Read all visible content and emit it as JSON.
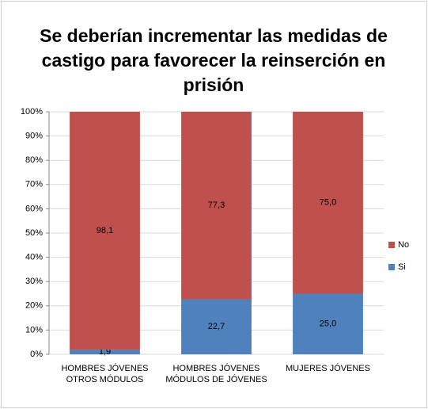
{
  "chart_data": {
    "type": "stacked_bar",
    "title": "Se deberían incrementar las medidas de castigo para favorecer la reinserción en prisión",
    "categories": [
      "HOMBRES JÓVENES OTROS MÓDULOS",
      "HOMBRES JÓVENES MÓDULOS DE JÓVENES",
      "MUJERES JÓVENES"
    ],
    "series": [
      {
        "name": "Si",
        "color": "#4f81bd",
        "values": [
          1.9,
          22.7,
          25.0
        ],
        "value_labels": [
          "1,9",
          "22,7",
          "25,0"
        ]
      },
      {
        "name": "No",
        "color": "#c0504d",
        "values": [
          98.1,
          77.3,
          75.0
        ],
        "value_labels": [
          "98,1",
          "77,3",
          "75,0"
        ]
      }
    ],
    "ylim": [
      0,
      100
    ],
    "yticks": [
      {
        "value": 0,
        "label": "0%"
      },
      {
        "value": 10,
        "label": "10%"
      },
      {
        "value": 20,
        "label": "20%"
      },
      {
        "value": 30,
        "label": "30%"
      },
      {
        "value": 40,
        "label": "40%"
      },
      {
        "value": 50,
        "label": "50%"
      },
      {
        "value": 60,
        "label": "60%"
      },
      {
        "value": 70,
        "label": "70%"
      },
      {
        "value": 80,
        "label": "80%"
      },
      {
        "value": 90,
        "label": "90%"
      },
      {
        "value": 100,
        "label": "100%"
      }
    ],
    "grid": true,
    "legend": "right"
  }
}
